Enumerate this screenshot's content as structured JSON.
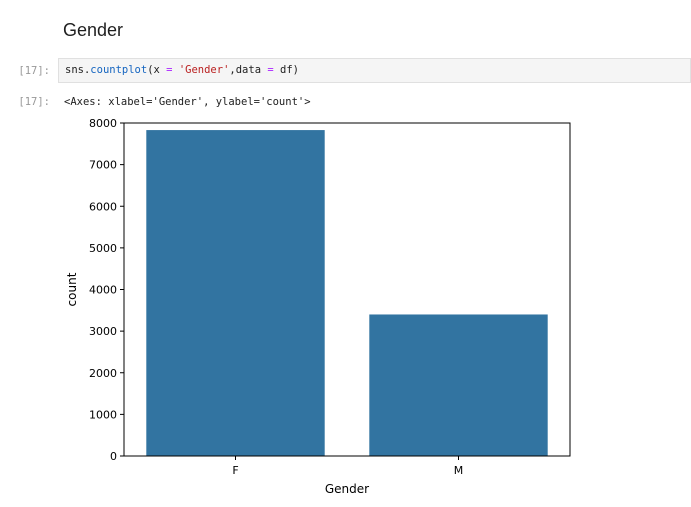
{
  "section": {
    "title": "Gender"
  },
  "input_cell": {
    "prompt": "[17]:",
    "code": {
      "obj": "sns.",
      "fn": "countplot",
      "args_open": "(x ",
      "eq1": "=",
      "space1": " ",
      "arg_str": "'Gender'",
      "mid": ",data ",
      "eq2": "=",
      "tail": " df)"
    }
  },
  "output_cell": {
    "prompt": "[17]:",
    "text": "<Axes: xlabel='Gender', ylabel='count'>"
  },
  "chart_data": {
    "type": "bar",
    "categories": [
      "F",
      "M"
    ],
    "values": [
      7830,
      3400
    ],
    "title": "",
    "xlabel": "Gender",
    "ylabel": "count",
    "ylim": [
      0,
      8000
    ],
    "yticks": [
      0,
      1000,
      2000,
      3000,
      4000,
      5000,
      6000,
      7000,
      8000
    ],
    "grid": false,
    "bar_color": "#3274a1"
  }
}
